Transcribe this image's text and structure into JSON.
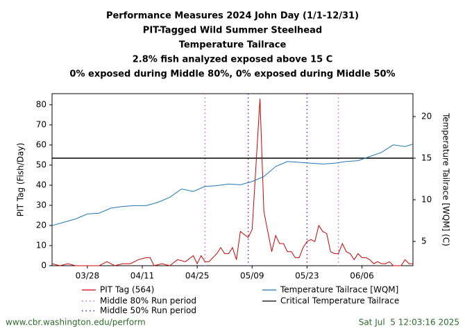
{
  "chart_data": {
    "type": "line",
    "title_lines": [
      "Performance Measures 2024 John Day (1/1-12/31)",
      "PIT-Tagged Wild Summer Steelhead",
      "Temperature Tailrace",
      "2.8% fish analyzed exposed above 15 C",
      "0% exposed during Middle 80%, 0% exposed during Middle 50%"
    ],
    "ylabel": "PIT Tag (Fish/Day)",
    "y2label": "Temperature Tailrace [WQM] (C)",
    "xlim": [
      "03/19",
      "06/19"
    ],
    "xticks": [
      "03/28",
      "04/11",
      "04/25",
      "05/09",
      "05/23",
      "06/06"
    ],
    "ylim": [
      0,
      85.5
    ],
    "yticks": [
      0,
      10,
      20,
      30,
      40,
      50,
      60,
      70,
      80
    ],
    "y2lim": [
      2.08,
      22.75
    ],
    "y2ticks": [
      5,
      10,
      15,
      20
    ],
    "series": [
      {
        "name": "PIT Tag (564)",
        "color": "#cc0000",
        "x": [
          "03/19",
          "03/21",
          "03/23",
          "03/25",
          "03/28",
          "03/31",
          "04/02",
          "04/04",
          "04/06",
          "04/08",
          "04/10",
          "04/12",
          "04/13",
          "04/14",
          "04/16",
          "04/18",
          "04/20",
          "04/22",
          "04/24",
          "04/25",
          "04/26",
          "04/27",
          "04/28",
          "04/30",
          "05/01",
          "05/02",
          "05/03",
          "05/04",
          "05/05",
          "05/06",
          "05/08",
          "05/09",
          "05/11",
          "05/12",
          "05/14",
          "05/15",
          "05/16",
          "05/17",
          "05/18",
          "05/19",
          "05/20",
          "05/21",
          "05/22",
          "05/23",
          "05/24",
          "05/25",
          "05/26",
          "05/27",
          "05/28",
          "05/29",
          "05/30",
          "05/31",
          "06/01",
          "06/02",
          "06/03",
          "06/04",
          "06/05",
          "06/06",
          "06/07",
          "06/08",
          "06/09",
          "06/10",
          "06/11",
          "06/12",
          "06/13",
          "06/14",
          "06/15",
          "06/16",
          "06/17",
          "06/18",
          "06/19"
        ],
        "values": [
          1,
          0,
          1,
          0,
          0,
          0,
          2,
          0,
          1,
          1,
          3,
          4,
          4,
          0,
          1,
          0,
          3,
          2,
          5,
          1,
          5,
          2,
          2,
          6,
          9,
          6,
          6,
          9,
          3,
          17,
          14,
          18,
          83,
          27,
          7,
          15,
          11,
          11,
          7,
          7,
          4,
          4,
          9,
          12,
          13,
          12,
          20,
          17,
          16,
          7,
          6,
          6,
          11,
          7,
          6,
          3,
          6,
          4,
          4,
          3,
          1,
          2,
          1,
          1,
          2,
          0,
          0,
          0,
          3,
          1,
          1
        ]
      },
      {
        "name": "Temperature Tailrace [WQM]",
        "color": "#1f77b4",
        "axis": "y2",
        "x": [
          "03/19",
          "03/22",
          "03/25",
          "03/28",
          "03/31",
          "04/03",
          "04/06",
          "04/09",
          "04/12",
          "04/15",
          "04/18",
          "04/21",
          "04/24",
          "04/27",
          "04/30",
          "05/03",
          "05/06",
          "05/09",
          "05/12",
          "05/15",
          "05/18",
          "05/21",
          "05/24",
          "05/27",
          "05/30",
          "06/02",
          "06/05",
          "06/08",
          "06/11",
          "06/14",
          "06/17",
          "06/19"
        ],
        "values": [
          6.9,
          7.3,
          7.7,
          8.3,
          8.4,
          9.0,
          9.2,
          9.3,
          9.3,
          9.7,
          10.3,
          11.3,
          11.0,
          11.6,
          11.7,
          11.9,
          11.8,
          12.2,
          12.8,
          14.0,
          14.6,
          14.5,
          14.4,
          14.3,
          14.4,
          14.6,
          14.7,
          15.2,
          15.7,
          16.6,
          16.4,
          16.7
        ]
      }
    ],
    "reference_lines": [
      {
        "name": "Critical Temperature Tailrace",
        "color": "#000000",
        "axis": "y2",
        "value": 15
      }
    ],
    "vlines": [
      {
        "name": "Middle 80% Run period",
        "color": "#cc66cc",
        "x": [
          "04/27",
          "05/31"
        ]
      },
      {
        "name": "Middle 50% Run period",
        "color": "#7a1fc2",
        "x": [
          "05/08",
          "05/23"
        ]
      }
    ]
  },
  "footer": {
    "url": "www.cbr.washington.edu/perform",
    "timestamp": "Sat Jul  5 12:03:16 2025"
  }
}
